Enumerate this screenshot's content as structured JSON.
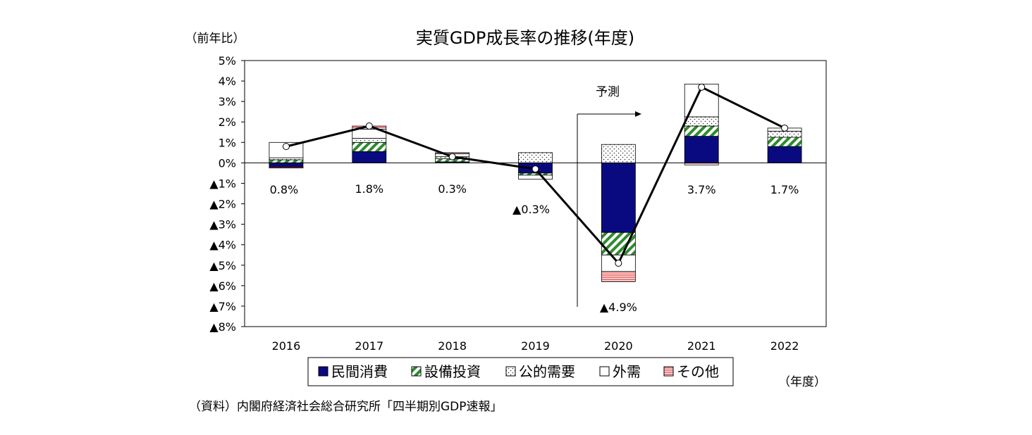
{
  "colors": {
    "private_consumption": "#0a0a80",
    "capex_hatch": "#2e8b2e",
    "other_hatch": "#e04b4b",
    "line": "#000000"
  },
  "chart_data": {
    "type": "bar",
    "subtype": "stacked-bar-with-line",
    "title": "実質GDP成長率の推移(年度)",
    "ylabel": "（前年比）",
    "xlabel": "（年度）",
    "source": "（資料）内閣府経済社会総合研究所「四半期別GDP速報」",
    "forecast_label": "予測",
    "categories": [
      "2016",
      "2017",
      "2018",
      "2019",
      "2020",
      "2021",
      "2022"
    ],
    "ylim": [
      -8,
      5
    ],
    "yticks": [
      5,
      4,
      3,
      2,
      1,
      0,
      -1,
      -2,
      -3,
      -4,
      -5,
      -6,
      -7,
      -8
    ],
    "ytick_labels": [
      "5%",
      "4%",
      "3%",
      "2%",
      "1%",
      "0%",
      "▲1%",
      "▲2%",
      "▲3%",
      "▲4%",
      "▲5%",
      "▲6%",
      "▲7%",
      "▲8%"
    ],
    "series": [
      {
        "key": "private_consumption",
        "name": "民間消費",
        "values": [
          -0.2,
          0.55,
          0.05,
          -0.5,
          -3.4,
          1.3,
          0.8
        ]
      },
      {
        "key": "capex",
        "name": "設備投資",
        "values": [
          0.15,
          0.45,
          0.15,
          -0.1,
          -1.1,
          0.5,
          0.45
        ]
      },
      {
        "key": "public_demand",
        "name": "公的需要",
        "values": [
          0.1,
          0.2,
          0.1,
          0.5,
          0.9,
          0.45,
          0.3
        ]
      },
      {
        "key": "external_demand",
        "name": "外需",
        "values": [
          0.75,
          0.45,
          0.15,
          -0.2,
          -0.8,
          1.6,
          0.15
        ]
      },
      {
        "key": "other",
        "name": "その他",
        "values": [
          -0.05,
          0.15,
          0.05,
          0.0,
          -0.5,
          -0.1,
          0.0
        ]
      }
    ],
    "gdp_growth": {
      "name": "実質GDP成長率",
      "values": [
        0.8,
        1.8,
        0.3,
        -0.3,
        -4.9,
        3.7,
        1.7
      ]
    },
    "data_labels": [
      "0.8%",
      "1.8%",
      "0.3%",
      "▲0.3%",
      "▲4.9%",
      "3.7%",
      "1.7%"
    ],
    "legend": [
      "民間消費",
      "設備投資",
      "公的需要",
      "外需",
      "その他"
    ],
    "legend_position": "bottom"
  }
}
